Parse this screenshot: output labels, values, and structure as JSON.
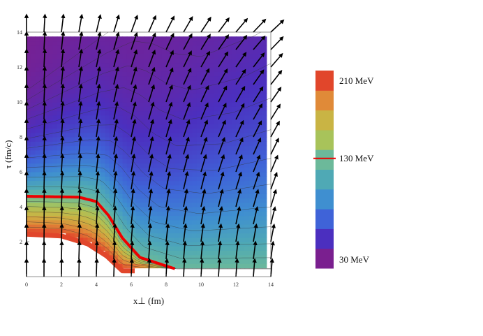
{
  "chart_data": {
    "type": "heatmap",
    "title": "",
    "xlabel": "x⊥ (fm)",
    "ylabel": "τ (fm/c)",
    "xlim": [
      0,
      14
    ],
    "ylim": [
      0,
      14
    ],
    "x_ticks": [
      0,
      2,
      4,
      6,
      8,
      10,
      12,
      14
    ],
    "y_ticks": [
      2,
      4,
      6,
      8,
      10,
      12,
      14
    ],
    "grid": false,
    "colorbar": {
      "placement": "right",
      "min_MeV": 30,
      "max_MeV": 210,
      "labels": [
        {
          "text": "210 MeV",
          "value": 210,
          "color": "#111111"
        },
        {
          "text": "130 MeV",
          "value": 130,
          "color": "#e00000"
        },
        {
          "text": "30 MeV",
          "value": 30,
          "color": "#111111"
        }
      ],
      "colors": [
        "#7a1f8f",
        "#4b2fbf",
        "#3f63d8",
        "#3f8fd0",
        "#4fa9b5",
        "#6cb99a",
        "#a8c35a",
        "#c9b444",
        "#e08a38",
        "#e1462b"
      ]
    },
    "freezeout_isotherm_MeV": 130,
    "freezeout_color": "#ee0000",
    "isotherm_curve_130MeV": [
      [
        0,
        4.6
      ],
      [
        3,
        4.55
      ],
      [
        4,
        4.3
      ],
      [
        4.7,
        3.5
      ],
      [
        5.5,
        2.2
      ],
      [
        6.5,
        1.1
      ],
      [
        8.5,
        0.45
      ]
    ],
    "initial_surface": [
      [
        0,
        2.55
      ],
      [
        2,
        2.45
      ],
      [
        3.5,
        2.0
      ],
      [
        4.6,
        1.3
      ],
      [
        5.5,
        0.45
      ]
    ],
    "velocity_field": "arrows pointing up and outward, tilting more with larger x⊥ and τ"
  }
}
